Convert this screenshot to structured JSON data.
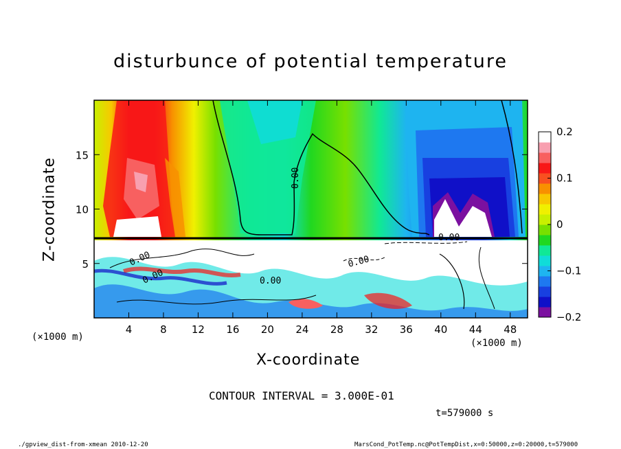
{
  "chart_data": {
    "type": "heatmap",
    "title": "disturbunce of potential temperature",
    "xlabel": "X-coordinate",
    "ylabel": "Z-coordinate",
    "x_unit_left": "(×1000 m)",
    "x_unit_right": "(×1000 m)",
    "xlim": [
      0,
      50
    ],
    "ylim": [
      0,
      20
    ],
    "x_ticks": [
      "4",
      "8",
      "12",
      "16",
      "20",
      "24",
      "28",
      "32",
      "36",
      "40",
      "44",
      "48"
    ],
    "x_tick_values": [
      4,
      8,
      12,
      16,
      20,
      24,
      28,
      32,
      36,
      40,
      44,
      48
    ],
    "y_ticks": [
      "5",
      "10",
      "15"
    ],
    "y_tick_values": [
      5,
      10,
      15
    ],
    "colorbar": {
      "min": -0.2,
      "max": 0.2,
      "tick_labels": [
        "0.2",
        "0.1",
        "0",
        "−0.1",
        "−0.2"
      ],
      "tick_values": [
        0.2,
        0.1,
        0,
        -0.1,
        -0.2
      ],
      "colors": [
        "#7b10a0",
        "#1010c8",
        "#1840e0",
        "#1e78f0",
        "#1eb4f0",
        "#10dcd8",
        "#10e896",
        "#20d820",
        "#78e000",
        "#c8f000",
        "#f0f000",
        "#f8c800",
        "#f89000",
        "#f85020",
        "#f81818",
        "#f86060",
        "#f8a0b0",
        "#ffffff"
      ]
    },
    "contour_labels": [
      "0.00",
      "0.00",
      "0.00",
      "0.00",
      "0.00",
      "0.00"
    ],
    "contour_interval": "CONTOUR INTERVAL = 3.000E-01",
    "time": "t=579000 s",
    "footer_left": "./gpview_dist-from-xmean  2010-12-20",
    "footer_right": "MarsCond_PotTemp.nc@PotTempDist,x=0:50000,z=0:20000,t=579000"
  }
}
